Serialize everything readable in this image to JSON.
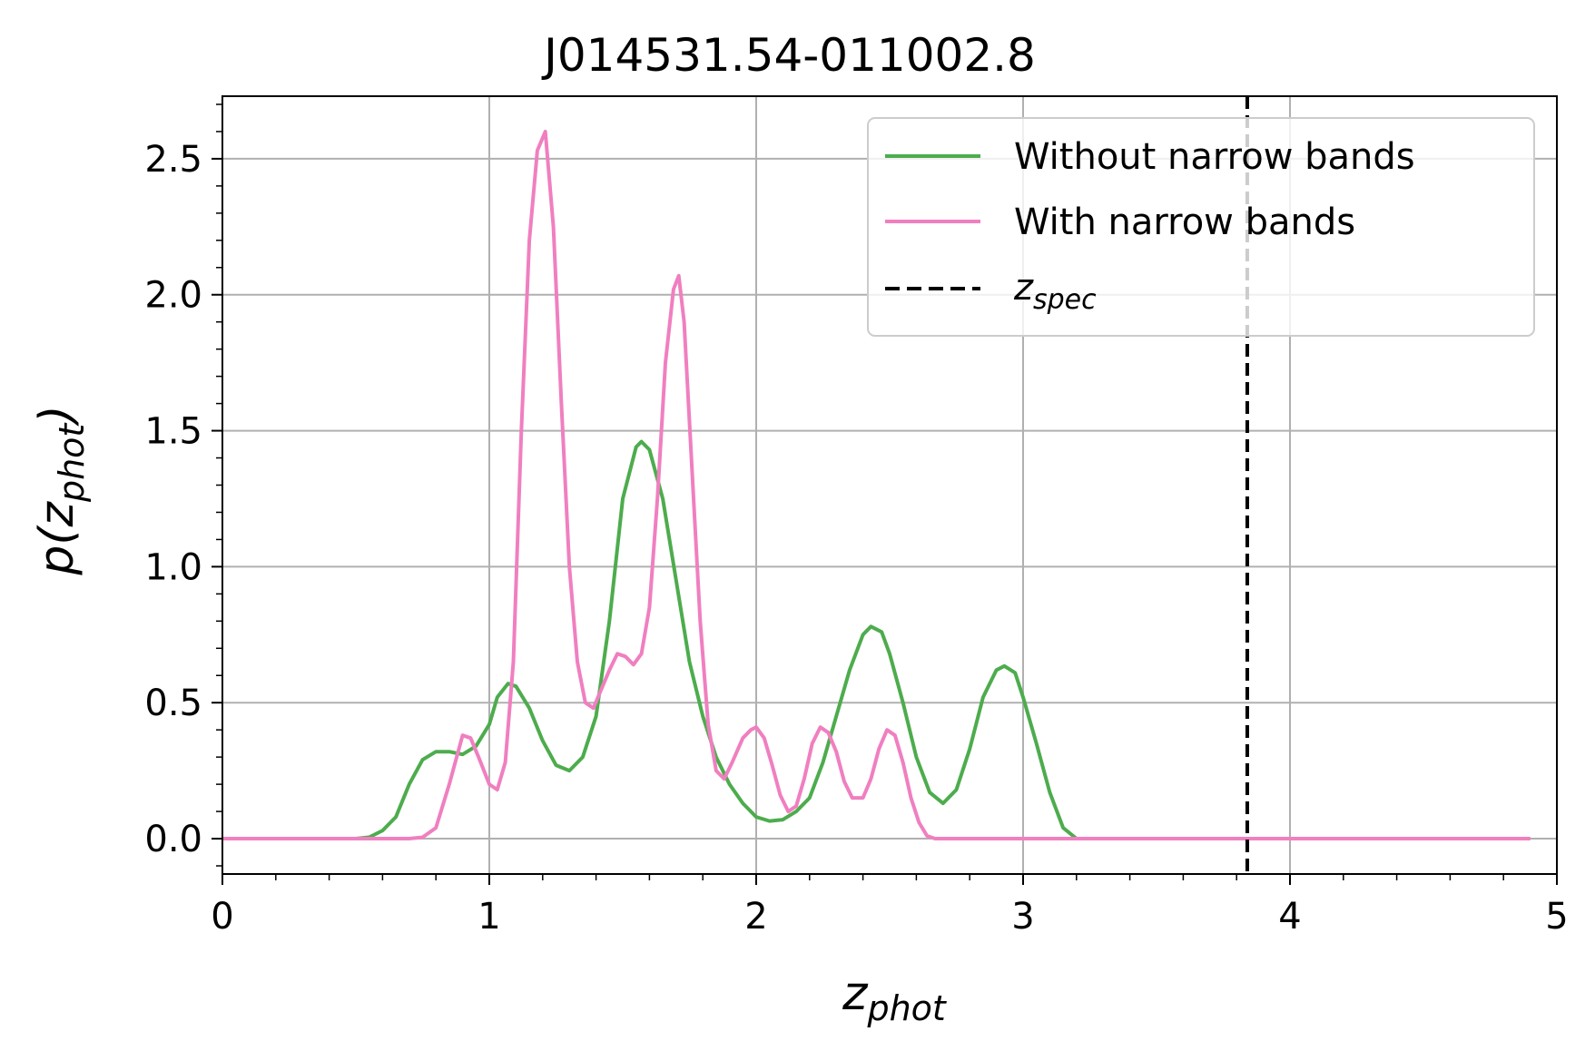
{
  "chart_data": {
    "type": "line",
    "title": "J014531.54-011002.8",
    "xlabel": {
      "main": "z",
      "sub": "phot"
    },
    "ylabel": {
      "pre": "p(",
      "main": "z",
      "sub": "phot",
      "post": ")"
    },
    "xlim": [
      0,
      5
    ],
    "ylim": [
      -0.13,
      2.73
    ],
    "xticks": [
      0,
      1,
      2,
      3,
      4,
      5
    ],
    "xtick_labels": [
      "0",
      "1",
      "2",
      "3",
      "4",
      "5"
    ],
    "yticks": [
      0.0,
      0.5,
      1.0,
      1.5,
      2.0,
      2.5
    ],
    "ytick_labels": [
      "0.0",
      "0.5",
      "1.0",
      "1.5",
      "2.0",
      "2.5"
    ],
    "grid": true,
    "legend_position": "top-right",
    "series": [
      {
        "name": "Without narrow bands",
        "color": "#4dac4d",
        "points": [
          [
            0,
            0
          ],
          [
            0.5,
            0
          ],
          [
            0.55,
            0.005
          ],
          [
            0.6,
            0.03
          ],
          [
            0.65,
            0.08
          ],
          [
            0.7,
            0.2
          ],
          [
            0.75,
            0.29
          ],
          [
            0.8,
            0.32
          ],
          [
            0.85,
            0.32
          ],
          [
            0.9,
            0.31
          ],
          [
            0.95,
            0.34
          ],
          [
            1.0,
            0.42
          ],
          [
            1.03,
            0.52
          ],
          [
            1.07,
            0.57
          ],
          [
            1.1,
            0.56
          ],
          [
            1.15,
            0.48
          ],
          [
            1.2,
            0.36
          ],
          [
            1.25,
            0.27
          ],
          [
            1.3,
            0.25
          ],
          [
            1.35,
            0.3
          ],
          [
            1.4,
            0.45
          ],
          [
            1.45,
            0.8
          ],
          [
            1.5,
            1.25
          ],
          [
            1.55,
            1.44
          ],
          [
            1.57,
            1.46
          ],
          [
            1.6,
            1.43
          ],
          [
            1.65,
            1.25
          ],
          [
            1.7,
            0.95
          ],
          [
            1.75,
            0.65
          ],
          [
            1.8,
            0.45
          ],
          [
            1.85,
            0.3
          ],
          [
            1.9,
            0.2
          ],
          [
            1.95,
            0.13
          ],
          [
            2.0,
            0.08
          ],
          [
            2.05,
            0.065
          ],
          [
            2.1,
            0.07
          ],
          [
            2.15,
            0.1
          ],
          [
            2.2,
            0.15
          ],
          [
            2.25,
            0.28
          ],
          [
            2.3,
            0.45
          ],
          [
            2.35,
            0.62
          ],
          [
            2.4,
            0.75
          ],
          [
            2.43,
            0.78
          ],
          [
            2.47,
            0.76
          ],
          [
            2.5,
            0.68
          ],
          [
            2.55,
            0.5
          ],
          [
            2.6,
            0.3
          ],
          [
            2.65,
            0.17
          ],
          [
            2.7,
            0.13
          ],
          [
            2.75,
            0.18
          ],
          [
            2.8,
            0.33
          ],
          [
            2.85,
            0.52
          ],
          [
            2.9,
            0.62
          ],
          [
            2.93,
            0.635
          ],
          [
            2.97,
            0.61
          ],
          [
            3.0,
            0.52
          ],
          [
            3.05,
            0.35
          ],
          [
            3.1,
            0.17
          ],
          [
            3.15,
            0.04
          ],
          [
            3.2,
            0.0
          ],
          [
            4.9,
            0.0
          ]
        ]
      },
      {
        "name": "With narrow bands",
        "color": "#f07fc0",
        "points": [
          [
            0,
            0
          ],
          [
            0.7,
            0
          ],
          [
            0.75,
            0.005
          ],
          [
            0.8,
            0.04
          ],
          [
            0.85,
            0.2
          ],
          [
            0.9,
            0.38
          ],
          [
            0.93,
            0.37
          ],
          [
            0.96,
            0.3
          ],
          [
            1.0,
            0.2
          ],
          [
            1.03,
            0.18
          ],
          [
            1.06,
            0.28
          ],
          [
            1.09,
            0.65
          ],
          [
            1.12,
            1.5
          ],
          [
            1.15,
            2.2
          ],
          [
            1.18,
            2.53
          ],
          [
            1.21,
            2.6
          ],
          [
            1.24,
            2.25
          ],
          [
            1.27,
            1.6
          ],
          [
            1.3,
            1.0
          ],
          [
            1.33,
            0.65
          ],
          [
            1.36,
            0.5
          ],
          [
            1.39,
            0.48
          ],
          [
            1.42,
            0.55
          ],
          [
            1.45,
            0.62
          ],
          [
            1.48,
            0.68
          ],
          [
            1.51,
            0.67
          ],
          [
            1.54,
            0.64
          ],
          [
            1.57,
            0.68
          ],
          [
            1.6,
            0.85
          ],
          [
            1.63,
            1.25
          ],
          [
            1.66,
            1.75
          ],
          [
            1.69,
            2.02
          ],
          [
            1.71,
            2.07
          ],
          [
            1.73,
            1.9
          ],
          [
            1.76,
            1.35
          ],
          [
            1.79,
            0.8
          ],
          [
            1.82,
            0.42
          ],
          [
            1.85,
            0.25
          ],
          [
            1.88,
            0.22
          ],
          [
            1.91,
            0.28
          ],
          [
            1.95,
            0.37
          ],
          [
            1.98,
            0.4
          ],
          [
            2.0,
            0.41
          ],
          [
            2.03,
            0.37
          ],
          [
            2.06,
            0.27
          ],
          [
            2.09,
            0.16
          ],
          [
            2.12,
            0.1
          ],
          [
            2.15,
            0.12
          ],
          [
            2.18,
            0.22
          ],
          [
            2.21,
            0.35
          ],
          [
            2.24,
            0.41
          ],
          [
            2.27,
            0.39
          ],
          [
            2.3,
            0.32
          ],
          [
            2.33,
            0.21
          ],
          [
            2.36,
            0.15
          ],
          [
            2.4,
            0.15
          ],
          [
            2.43,
            0.22
          ],
          [
            2.46,
            0.33
          ],
          [
            2.49,
            0.4
          ],
          [
            2.52,
            0.38
          ],
          [
            2.55,
            0.28
          ],
          [
            2.58,
            0.15
          ],
          [
            2.61,
            0.06
          ],
          [
            2.64,
            0.01
          ],
          [
            2.67,
            0.0
          ],
          [
            4.9,
            0.0
          ]
        ]
      }
    ],
    "reference_line": {
      "name_main": "z",
      "name_sub": "spec",
      "x": 3.84,
      "color": "#000000",
      "style": "dashed"
    }
  }
}
